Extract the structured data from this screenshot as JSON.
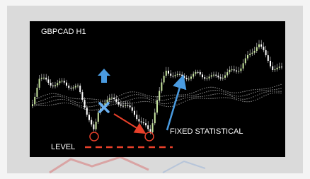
{
  "title": "GBPCAD H1",
  "annotations": {
    "fixed": "FIXED STATISTICAL",
    "level": "LEVEL"
  }
}
